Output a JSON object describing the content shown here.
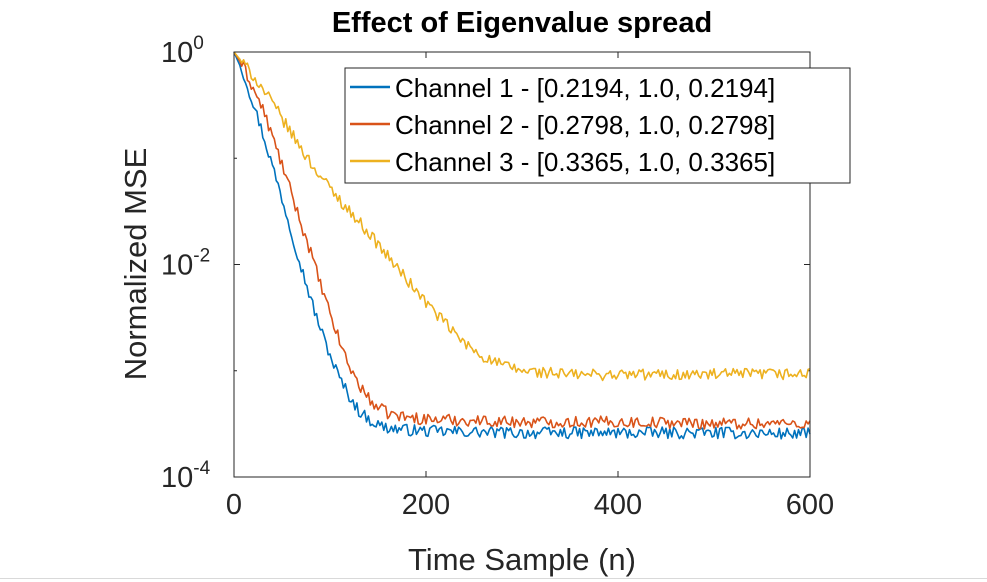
{
  "chart_data": {
    "type": "line",
    "title": "Effect of Eigenvalue spread",
    "xlabel": "Time Sample (n)",
    "ylabel": "Normalized MSE",
    "xlim": [
      0,
      600
    ],
    "ylim": [
      0.0001,
      1
    ],
    "yscale": "log",
    "xticks": [
      "0",
      "200",
      "400",
      "600"
    ],
    "yticks": [
      {
        "base": "10",
        "exp": "0"
      },
      {
        "base": "10",
        "exp": "-2"
      },
      {
        "base": "10",
        "exp": "-4"
      }
    ],
    "legend_position": "top-right",
    "grid": false,
    "series": [
      {
        "name": "Channel 1 - [0.2194, 1.0, 0.2194]",
        "color": "#0072BD",
        "x": [
          0,
          10,
          20,
          30,
          40,
          50,
          60,
          70,
          80,
          90,
          100,
          110,
          120,
          130,
          140,
          150,
          160,
          175,
          200,
          250,
          300,
          400,
          500,
          600
        ],
        "y": [
          1.0,
          0.62,
          0.33,
          0.17,
          0.085,
          0.042,
          0.02,
          0.0095,
          0.0047,
          0.0025,
          0.0014,
          0.00085,
          0.00058,
          0.00042,
          0.00035,
          0.00031,
          0.00029,
          0.00028,
          0.00027,
          0.000265,
          0.00026,
          0.00026,
          0.00026,
          0.000255
        ]
      },
      {
        "name": "Channel 2 - [0.2798, 1.0, 0.2798]",
        "color": "#D95319",
        "x": [
          0,
          10,
          20,
          30,
          40,
          50,
          60,
          70,
          80,
          90,
          100,
          110,
          120,
          130,
          140,
          150,
          160,
          175,
          200,
          250,
          300,
          400,
          500,
          600
        ],
        "y": [
          1.0,
          0.72,
          0.45,
          0.29,
          0.16,
          0.087,
          0.046,
          0.024,
          0.013,
          0.0065,
          0.0034,
          0.0019,
          0.0011,
          0.00075,
          0.00055,
          0.00045,
          0.0004,
          0.00037,
          0.00035,
          0.00034,
          0.00033,
          0.00033,
          0.00032,
          0.00032
        ]
      },
      {
        "name": "Channel 3 - [0.3365, 1.0, 0.3365]",
        "color": "#EDB120",
        "x": [
          0,
          20,
          40,
          60,
          80,
          100,
          120,
          140,
          160,
          180,
          200,
          220,
          240,
          260,
          280,
          300,
          350,
          400,
          450,
          500,
          550,
          600
        ],
        "y": [
          1.0,
          0.6,
          0.33,
          0.17,
          0.09,
          0.052,
          0.032,
          0.02,
          0.012,
          0.0072,
          0.0044,
          0.0028,
          0.0018,
          0.00135,
          0.00112,
          0.001,
          0.00092,
          0.00092,
          0.00092,
          0.00092,
          0.00093,
          0.00093
        ]
      }
    ]
  }
}
